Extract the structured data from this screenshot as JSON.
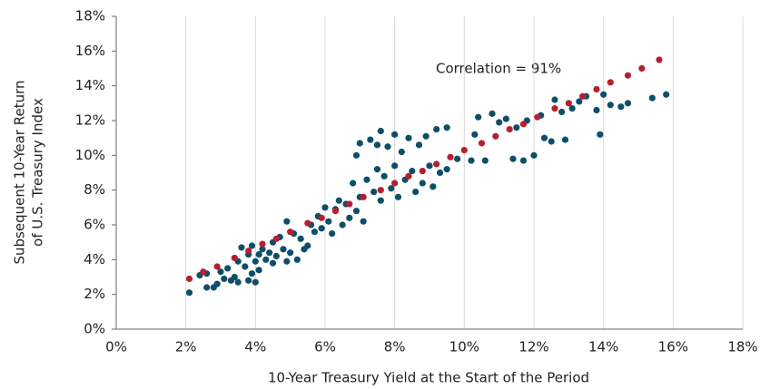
{
  "chart_data": {
    "type": "scatter",
    "xlabel": "10-Year Treasury Yield at the Start of the Period",
    "ylabel": [
      "Subsequent 10-Year Return",
      "of U.S. Treasury Index"
    ],
    "annotation": "Correlation = 91%",
    "xlim": [
      0,
      18
    ],
    "ylim": [
      0,
      18
    ],
    "xticks": [
      {
        "value": 0,
        "label": "0%"
      },
      {
        "value": 2,
        "label": "2%"
      },
      {
        "value": 4,
        "label": "4%"
      },
      {
        "value": 6,
        "label": "6%"
      },
      {
        "value": 8,
        "label": "8%"
      },
      {
        "value": 10,
        "label": "10%"
      },
      {
        "value": 12,
        "label": "12%"
      },
      {
        "value": 14,
        "label": "14%"
      },
      {
        "value": 16,
        "label": "16%"
      },
      {
        "value": 18,
        "label": "18%"
      }
    ],
    "yticks": [
      {
        "value": 0,
        "label": "0%"
      },
      {
        "value": 2,
        "label": "2%"
      },
      {
        "value": 4,
        "label": "4%"
      },
      {
        "value": 6,
        "label": "6%"
      },
      {
        "value": 8,
        "label": "8%"
      },
      {
        "value": 10,
        "label": "10%"
      },
      {
        "value": 12,
        "label": "12%"
      },
      {
        "value": 14,
        "label": "14%"
      },
      {
        "value": 16,
        "label": "16%"
      },
      {
        "value": 18,
        "label": "18%"
      }
    ],
    "grid": "x",
    "series": [
      {
        "color": "#0f4e69",
        "x": [
          2.1,
          2.4,
          2.6,
          2.6,
          2.8,
          2.9,
          3.0,
          3.1,
          3.2,
          3.3,
          3.4,
          3.5,
          3.5,
          3.6,
          3.7,
          3.8,
          3.8,
          3.9,
          3.9,
          4.0,
          4.0,
          4.1,
          4.1,
          4.2,
          4.3,
          4.4,
          4.5,
          4.5,
          4.6,
          4.7,
          4.8,
          4.9,
          4.9,
          5.0,
          5.1,
          5.2,
          5.3,
          5.4,
          5.5,
          5.6,
          5.7,
          5.8,
          5.9,
          6.0,
          6.1,
          6.2,
          6.3,
          6.4,
          6.5,
          6.6,
          6.7,
          6.8,
          6.9,
          7.0,
          7.0,
          7.1,
          7.2,
          7.3,
          7.4,
          7.5,
          7.6,
          7.6,
          7.7,
          7.8,
          7.9,
          8.0,
          8.0,
          8.1,
          8.2,
          8.3,
          8.4,
          8.5,
          8.6,
          8.7,
          8.8,
          8.9,
          9.0,
          9.1,
          9.2,
          9.3,
          9.5,
          9.5,
          9.8,
          10.2,
          10.3,
          10.4,
          10.6,
          10.8,
          11.0,
          11.2,
          11.4,
          11.5,
          11.7,
          11.8,
          12.0,
          12.2,
          12.3,
          12.5,
          12.6,
          12.8,
          12.9,
          13.1,
          13.3,
          13.5,
          13.8,
          13.9,
          14.0,
          14.2,
          14.5,
          14.7,
          15.4,
          15.8,
          6.9,
          7.5
        ],
        "values": [
          2.1,
          3.1,
          3.2,
          2.4,
          2.4,
          2.6,
          3.3,
          2.9,
          3.5,
          2.8,
          3.0,
          2.7,
          3.9,
          4.7,
          3.6,
          2.8,
          4.3,
          3.2,
          4.8,
          2.7,
          3.9,
          3.4,
          4.3,
          4.6,
          4.0,
          4.4,
          5.0,
          3.8,
          4.2,
          5.3,
          4.6,
          3.9,
          6.2,
          4.4,
          5.5,
          4.0,
          5.2,
          4.6,
          4.8,
          6.0,
          5.6,
          6.5,
          5.8,
          7.0,
          6.2,
          5.5,
          6.9,
          7.4,
          6.0,
          7.2,
          6.4,
          8.4,
          6.8,
          7.6,
          10.7,
          6.2,
          8.6,
          10.9,
          7.9,
          9.2,
          11.4,
          7.4,
          8.8,
          10.5,
          8.1,
          11.2,
          9.4,
          7.6,
          10.2,
          8.6,
          11.0,
          9.1,
          7.9,
          10.6,
          8.4,
          11.1,
          9.4,
          8.2,
          11.5,
          9.0,
          11.6,
          9.2,
          9.8,
          9.7,
          11.2,
          12.2,
          9.7,
          12.4,
          11.9,
          12.1,
          9.8,
          11.6,
          9.7,
          12.0,
          10.0,
          12.3,
          11.0,
          10.8,
          13.2,
          12.5,
          10.9,
          12.7,
          13.1,
          13.4,
          12.6,
          11.2,
          13.5,
          12.9,
          12.8,
          13.0,
          13.3,
          13.5,
          10.0,
          10.6
        ]
      },
      {
        "color": "#b71f2e",
        "x": [
          2.1,
          2.5,
          2.9,
          3.4,
          3.8,
          4.2,
          4.6,
          5.0,
          5.5,
          5.9,
          6.3,
          6.7,
          7.1,
          7.6,
          8.0,
          8.4,
          8.8,
          9.2,
          9.6,
          10.0,
          10.5,
          10.9,
          11.3,
          11.7,
          12.1,
          12.6,
          13.0,
          13.4,
          13.8,
          14.2,
          14.7,
          15.1,
          15.6
        ],
        "values": [
          2.9,
          3.3,
          3.6,
          4.1,
          4.5,
          4.9,
          5.2,
          5.6,
          6.1,
          6.4,
          6.8,
          7.2,
          7.6,
          8.0,
          8.4,
          8.8,
          9.1,
          9.5,
          9.9,
          10.3,
          10.7,
          11.1,
          11.5,
          11.8,
          12.2,
          12.7,
          13.0,
          13.4,
          13.8,
          14.2,
          14.6,
          15.0,
          15.5
        ]
      }
    ]
  }
}
